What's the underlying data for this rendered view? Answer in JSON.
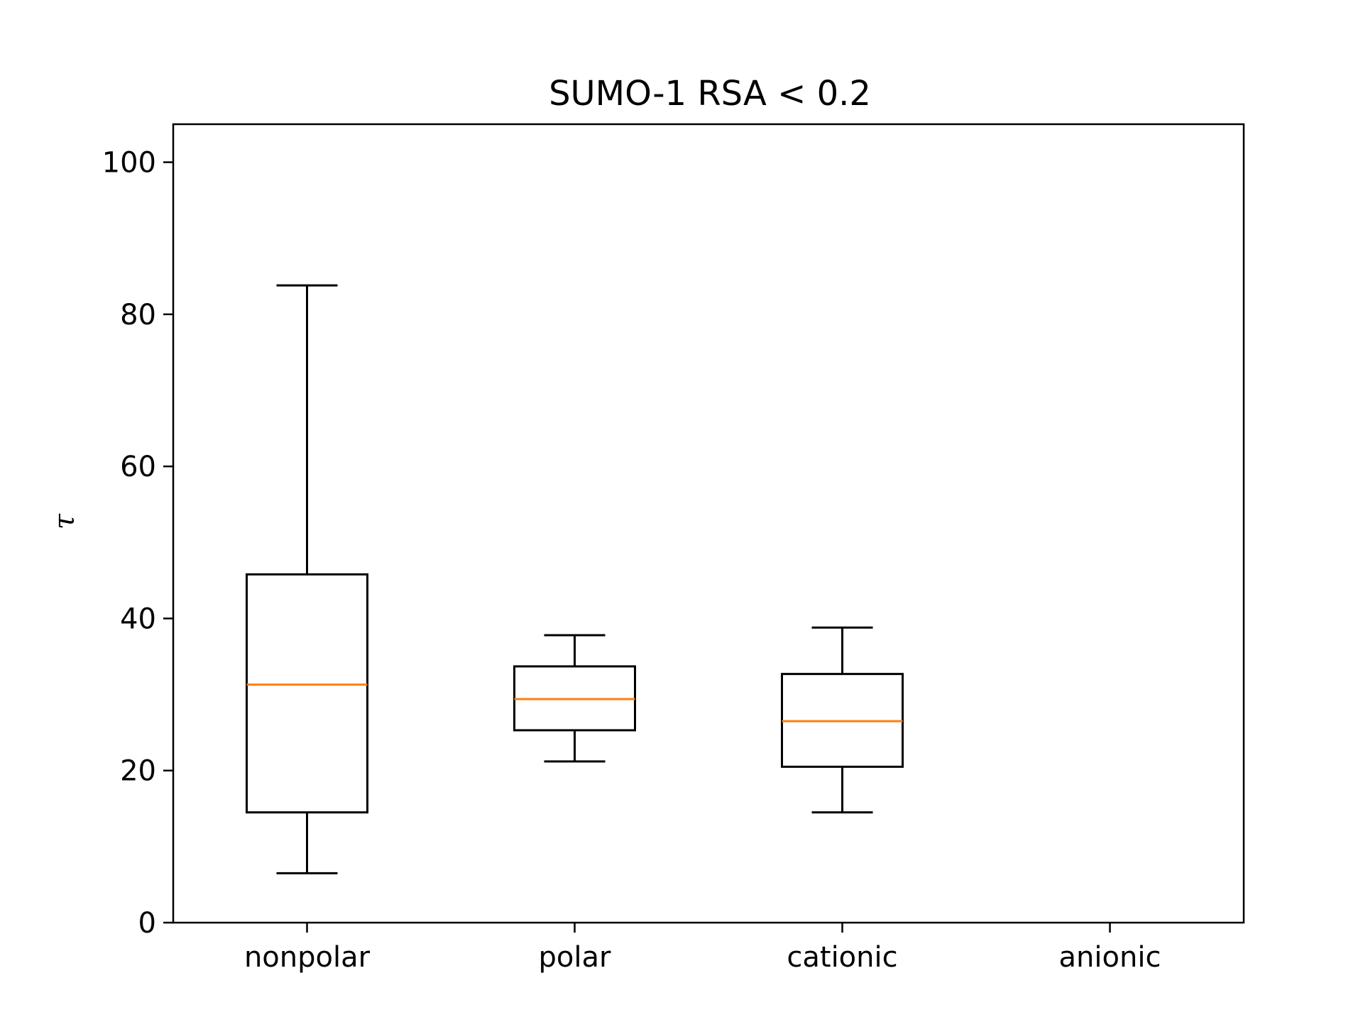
{
  "chart_data": {
    "type": "box",
    "title": "SUMO-1 RSA  <  0.2",
    "xlabel": "",
    "ylabel": "τ",
    "ylim": [
      0,
      105
    ],
    "yticks": [
      0,
      20,
      40,
      60,
      80,
      100
    ],
    "grid": false,
    "categories": [
      "nonpolar",
      "polar",
      "cationic",
      "anionic"
    ],
    "boxes": [
      {
        "category": "nonpolar",
        "whisker_low": 6.5,
        "q1": 14.5,
        "median": 31.3,
        "q3": 45.8,
        "whisker_high": 83.8
      },
      {
        "category": "polar",
        "whisker_low": 21.2,
        "q1": 25.3,
        "median": 29.4,
        "q3": 33.7,
        "whisker_high": 37.8
      },
      {
        "category": "cationic",
        "whisker_low": 14.5,
        "q1": 20.5,
        "median": 26.5,
        "q3": 32.7,
        "whisker_high": 38.8
      },
      {
        "category": "anionic"
      }
    ],
    "colors": {
      "box": "#000000",
      "median": "#ff7f0e"
    }
  }
}
